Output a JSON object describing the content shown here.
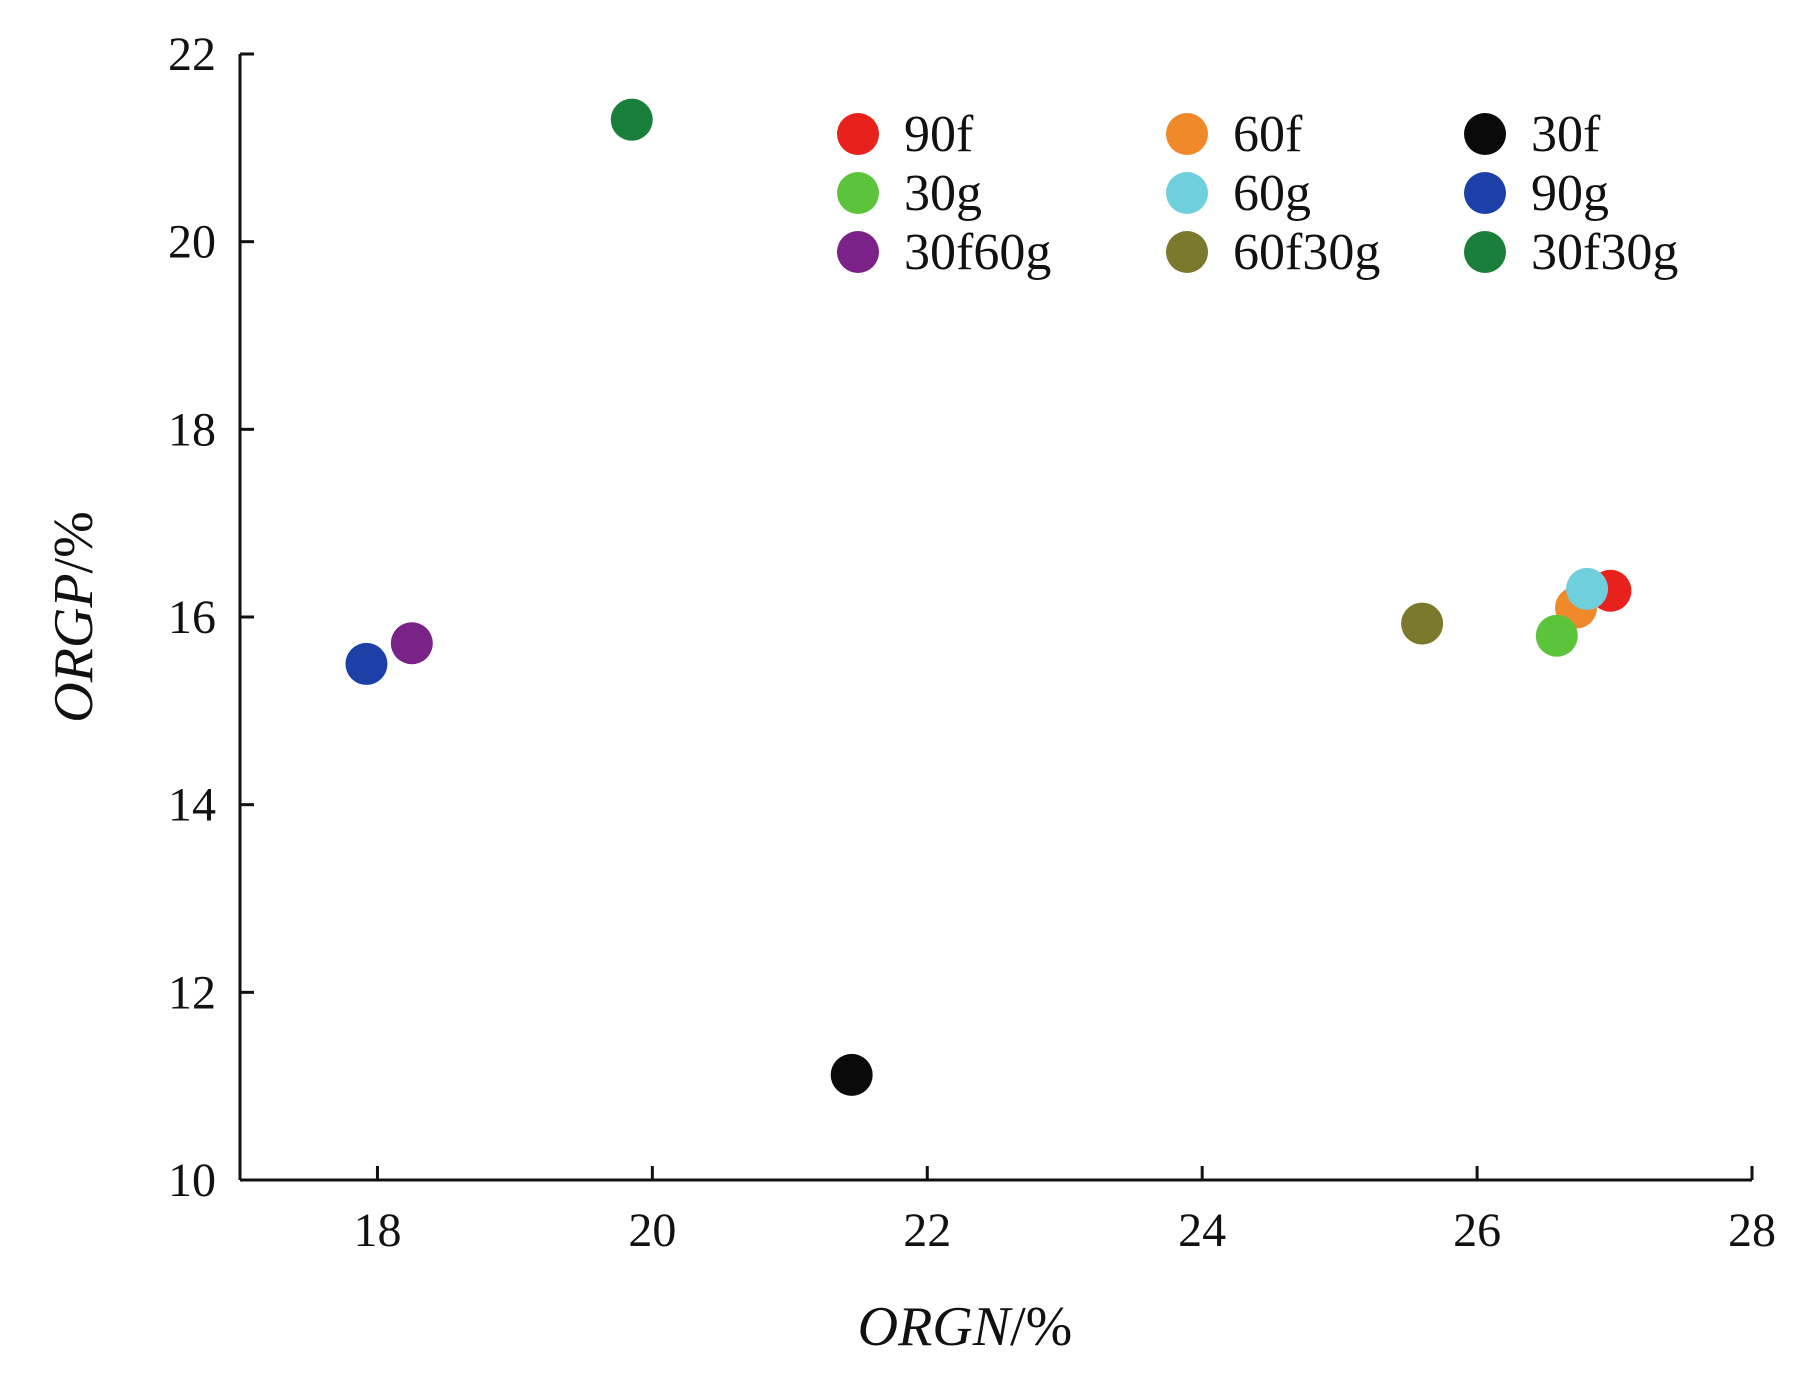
{
  "chart_data": {
    "type": "scatter",
    "title": "",
    "xlabel": {
      "italic": "ORGN",
      "suffix": "/%"
    },
    "ylabel": {
      "italic": "ORGP",
      "suffix": "/%"
    },
    "xlim": [
      17,
      28
    ],
    "ylim": [
      10,
      22
    ],
    "xticks": [
      18,
      20,
      22,
      24,
      26,
      28
    ],
    "yticks": [
      10,
      12,
      14,
      16,
      18,
      20,
      22
    ],
    "grid": false,
    "legend_position": "top-right",
    "series": [
      {
        "name": "90f",
        "color": "#e8211d",
        "x": 26.97,
        "y": 16.28
      },
      {
        "name": "60f",
        "color": "#f0892a",
        "x": 26.72,
        "y": 16.1
      },
      {
        "name": "30f",
        "color": "#0a0a0a",
        "x": 21.45,
        "y": 11.12
      },
      {
        "name": "30g",
        "color": "#5cc43a",
        "x": 26.58,
        "y": 15.8
      },
      {
        "name": "60g",
        "color": "#6fcfdc",
        "x": 26.8,
        "y": 16.3
      },
      {
        "name": "90g",
        "color": "#1c3fa8",
        "x": 17.92,
        "y": 15.5
      },
      {
        "name": "30f60g",
        "color": "#7a2288",
        "x": 18.25,
        "y": 15.72
      },
      {
        "name": "60f30g",
        "color": "#7b7a2c",
        "x": 25.6,
        "y": 15.93
      },
      {
        "name": "30f30g",
        "color": "#1b7f3c",
        "x": 19.85,
        "y": 21.3
      }
    ]
  }
}
